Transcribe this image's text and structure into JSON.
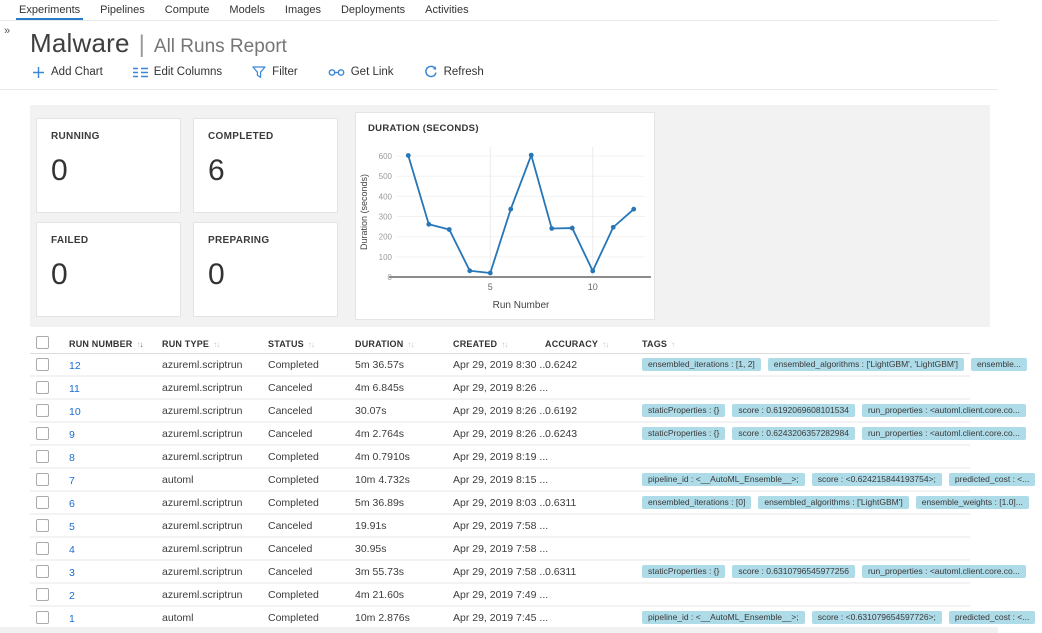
{
  "nav": {
    "items": [
      {
        "label": "Experiments",
        "active": true
      },
      {
        "label": "Pipelines"
      },
      {
        "label": "Compute"
      },
      {
        "label": "Models"
      },
      {
        "label": "Images"
      },
      {
        "label": "Deployments"
      },
      {
        "label": "Activities"
      }
    ]
  },
  "rail": {
    "expand_glyph": "»"
  },
  "header": {
    "title": "Malware",
    "separator": "|",
    "subtitle": "All Runs Report"
  },
  "toolbar": {
    "items": [
      {
        "icon": "add-chart-icon",
        "label": "Add Chart"
      },
      {
        "icon": "edit-columns-icon",
        "label": "Edit Columns"
      },
      {
        "icon": "filter-icon",
        "label": "Filter"
      },
      {
        "icon": "get-link-icon",
        "label": "Get Link"
      },
      {
        "icon": "refresh-icon",
        "label": "Refresh"
      }
    ]
  },
  "stats": [
    {
      "label": "RUNNING",
      "value": "0"
    },
    {
      "label": "COMPLETED",
      "value": "6"
    },
    {
      "label": "FAILED",
      "value": "0"
    },
    {
      "label": "PREPARING",
      "value": "0"
    }
  ],
  "chart_data": {
    "type": "line",
    "title": "DURATION (SECONDS)",
    "xlabel": "Run Number",
    "ylabel": "Duration (seconds)",
    "x": [
      1,
      2,
      3,
      4,
      5,
      6,
      7,
      8,
      9,
      10,
      11,
      12
    ],
    "y": [
      602.9,
      261.6,
      235.7,
      30.9,
      19.9,
      336.9,
      604.7,
      240.8,
      242.8,
      30.1,
      246.8,
      336.6
    ],
    "xticks": [
      5,
      10
    ],
    "yticks": [
      0,
      100,
      200,
      300,
      400,
      500,
      600
    ],
    "ylim": [
      0,
      645
    ],
    "grid": "light",
    "line_color": "#2676b8"
  },
  "table": {
    "columns": [
      {
        "label": "RUN NUMBER",
        "sorted": "desc"
      },
      {
        "label": "RUN TYPE"
      },
      {
        "label": "STATUS"
      },
      {
        "label": "DURATION"
      },
      {
        "label": "CREATED"
      },
      {
        "label": "ACCURACY"
      },
      {
        "label": "TAGS"
      }
    ],
    "rows": [
      {
        "run": "12",
        "type": "azureml.scriptrun",
        "status": "Completed",
        "duration": "5m 36.57s",
        "created": "Apr 29, 2019 8:30 ...",
        "accuracy": "0.6242",
        "tags": [
          "ensembled_iterations : [1, 2]",
          "ensembled_algorithms : ['LightGBM', 'LightGBM']",
          "ensemble..."
        ]
      },
      {
        "run": "11",
        "type": "azureml.scriptrun",
        "status": "Canceled",
        "duration": "4m 6.845s",
        "created": "Apr 29, 2019 8:26 ...",
        "accuracy": "",
        "tags": []
      },
      {
        "run": "10",
        "type": "azureml.scriptrun",
        "status": "Canceled",
        "duration": "30.07s",
        "created": "Apr 29, 2019 8:26 ...",
        "accuracy": "0.6192",
        "tags": [
          "staticProperties : {}",
          "score : 0.6192069608101534",
          "run_properties : <automl.client.core.co..."
        ]
      },
      {
        "run": "9",
        "type": "azureml.scriptrun",
        "status": "Canceled",
        "duration": "4m 2.764s",
        "created": "Apr 29, 2019 8:26 ...",
        "accuracy": "0.6243",
        "tags": [
          "staticProperties : {}",
          "score : 0.6243206357282984",
          "run_properties : <automl.client.core.co..."
        ]
      },
      {
        "run": "8",
        "type": "azureml.scriptrun",
        "status": "Completed",
        "duration": "4m 0.7910s",
        "created": "Apr 29, 2019 8:19 ...",
        "accuracy": "",
        "tags": []
      },
      {
        "run": "7",
        "type": "automl",
        "status": "Completed",
        "duration": "10m 4.732s",
        "created": "Apr 29, 2019 8:15 ...",
        "accuracy": "",
        "tags": [
          "pipeline_id : <__AutoML_Ensemble__>;",
          "score : <0.624215844193754>;",
          "predicted_cost : <..."
        ]
      },
      {
        "run": "6",
        "type": "azureml.scriptrun",
        "status": "Completed",
        "duration": "5m 36.89s",
        "created": "Apr 29, 2019 8:03 ...",
        "accuracy": "0.6311",
        "tags": [
          "ensembled_iterations : [0]",
          "ensembled_algorithms : ['LightGBM']",
          "ensemble_weights : [1.0]..."
        ]
      },
      {
        "run": "5",
        "type": "azureml.scriptrun",
        "status": "Canceled",
        "duration": "19.91s",
        "created": "Apr 29, 2019 7:58 ...",
        "accuracy": "",
        "tags": []
      },
      {
        "run": "4",
        "type": "azureml.scriptrun",
        "status": "Canceled",
        "duration": "30.95s",
        "created": "Apr 29, 2019 7:58 ...",
        "accuracy": "",
        "tags": []
      },
      {
        "run": "3",
        "type": "azureml.scriptrun",
        "status": "Canceled",
        "duration": "3m 55.73s",
        "created": "Apr 29, 2019 7:58 ...",
        "accuracy": "0.6311",
        "tags": [
          "staticProperties : {}",
          "score : 0.6310796545977256",
          "run_properties : <automl.client.core.co..."
        ]
      },
      {
        "run": "2",
        "type": "azureml.scriptrun",
        "status": "Completed",
        "duration": "4m 21.60s",
        "created": "Apr 29, 2019 7:49 ...",
        "accuracy": "",
        "tags": []
      },
      {
        "run": "1",
        "type": "automl",
        "status": "Completed",
        "duration": "10m 2.876s",
        "created": "Apr 29, 2019 7:45 ...",
        "accuracy": "",
        "tags": [
          "pipeline_id : <__AutoML_Ensemble__>;",
          "score : <0.631079654597726>;",
          "predicted_cost : <..."
        ]
      }
    ]
  },
  "colors": {
    "accent_blue": "#0078d4",
    "link_blue": "#1c6dd0",
    "tag_chip_bg": "#aedbe8",
    "panel_gray": "#f2f2f2",
    "chart_line": "#2676b8"
  }
}
